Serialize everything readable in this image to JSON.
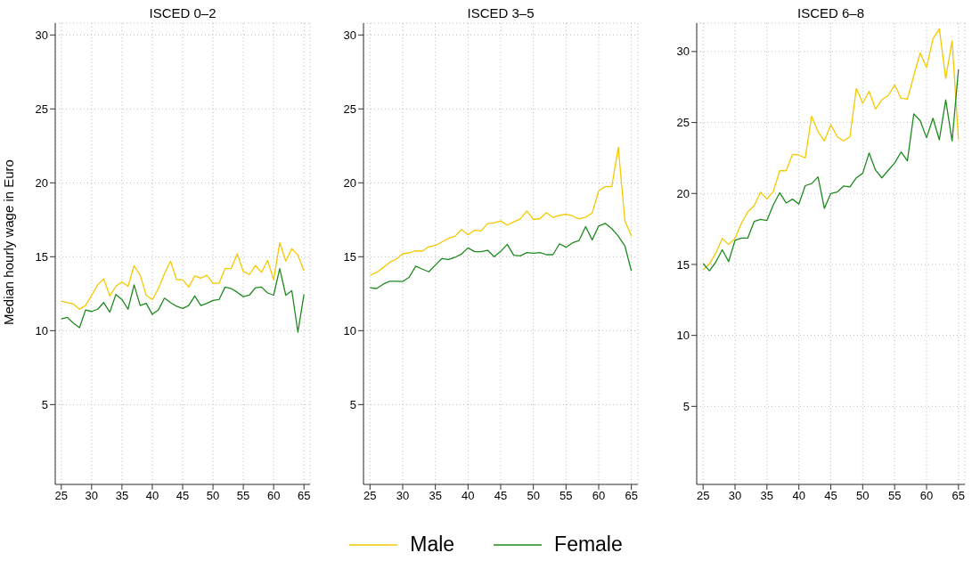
{
  "chart_data": [
    {
      "type": "line",
      "title": "ISCED 0–2",
      "ylabel": "Median hourly wage in Euro",
      "x": [
        25,
        26,
        27,
        28,
        29,
        30,
        31,
        32,
        33,
        34,
        35,
        36,
        37,
        38,
        39,
        40,
        41,
        42,
        43,
        44,
        45,
        46,
        47,
        48,
        49,
        50,
        51,
        52,
        53,
        54,
        55,
        56,
        57,
        58,
        59,
        60,
        61,
        62,
        63,
        64,
        65
      ],
      "xlim": [
        24,
        66
      ],
      "xticks": [
        25,
        30,
        35,
        40,
        45,
        50,
        55,
        60,
        65
      ],
      "ylim": [
        -0.4,
        30.8
      ],
      "yticks": [
        5,
        10,
        15,
        20,
        25,
        30
      ],
      "grid": true,
      "legend": "bottom",
      "series": [
        {
          "name": "Male",
          "color": "#f5c800",
          "values": [
            12.0,
            11.9,
            11.8,
            11.45,
            11.7,
            12.4,
            13.1,
            13.5,
            12.35,
            13.0,
            13.3,
            13.0,
            14.4,
            13.75,
            12.4,
            12.1,
            12.85,
            13.85,
            14.7,
            13.45,
            13.45,
            12.95,
            13.7,
            13.55,
            13.75,
            13.2,
            13.2,
            14.2,
            14.2,
            15.2,
            14.0,
            13.8,
            14.4,
            13.95,
            14.75,
            13.45,
            15.95,
            14.7,
            15.55,
            15.1,
            14.05
          ]
        },
        {
          "name": "Female",
          "color": "#1f8a1f",
          "values": [
            10.8,
            10.9,
            10.5,
            10.2,
            11.4,
            11.3,
            11.45,
            11.9,
            11.25,
            12.45,
            12.1,
            11.45,
            13.1,
            11.7,
            11.85,
            11.1,
            11.4,
            12.2,
            11.9,
            11.65,
            11.5,
            11.7,
            12.35,
            11.7,
            11.85,
            12.05,
            12.1,
            12.95,
            12.85,
            12.6,
            12.3,
            12.4,
            12.9,
            12.95,
            12.55,
            12.4,
            14.2,
            12.4,
            12.7,
            9.9,
            12.45
          ]
        }
      ]
    },
    {
      "type": "line",
      "title": "ISCED 3–5",
      "x": [
        25,
        26,
        27,
        28,
        29,
        30,
        31,
        32,
        33,
        34,
        35,
        36,
        37,
        38,
        39,
        40,
        41,
        42,
        43,
        44,
        45,
        46,
        47,
        48,
        49,
        50,
        51,
        52,
        53,
        54,
        55,
        56,
        57,
        58,
        59,
        60,
        61,
        62,
        63,
        64,
        65
      ],
      "xlim": [
        24,
        66
      ],
      "xticks": [
        25,
        30,
        35,
        40,
        45,
        50,
        55,
        60,
        65
      ],
      "ylim": [
        -0.4,
        30.8
      ],
      "yticks": [
        5,
        10,
        15,
        20,
        25,
        30
      ],
      "grid": true,
      "series": [
        {
          "color": "#f5c800",
          "values": [
            13.74,
            13.94,
            14.26,
            14.62,
            14.84,
            15.2,
            15.26,
            15.4,
            15.38,
            15.68,
            15.76,
            16.0,
            16.24,
            16.38,
            16.84,
            16.5,
            16.8,
            16.74,
            17.24,
            17.3,
            17.42,
            17.14,
            17.36,
            17.56,
            18.1,
            17.52,
            17.58,
            17.98,
            17.66,
            17.8,
            17.88,
            17.76,
            17.56,
            17.68,
            17.96,
            19.46,
            19.74,
            19.74,
            22.4,
            17.44,
            16.4
          ]
        },
        {
          "color": "#1f8a1f",
          "values": [
            12.9,
            12.85,
            13.14,
            13.34,
            13.34,
            13.32,
            13.62,
            14.36,
            14.16,
            13.98,
            14.44,
            14.88,
            14.82,
            14.96,
            15.18,
            15.6,
            15.34,
            15.34,
            15.44,
            15.0,
            15.36,
            15.84,
            15.1,
            15.06,
            15.28,
            15.24,
            15.28,
            15.14,
            15.14,
            15.88,
            15.64,
            15.94,
            16.1,
            17.04,
            16.14,
            17.08,
            17.26,
            16.9,
            16.4,
            15.74,
            14.04
          ]
        }
      ]
    },
    {
      "type": "line",
      "title": "ISCED 6–8",
      "x": [
        25,
        26,
        27,
        28,
        29,
        30,
        31,
        32,
        33,
        34,
        35,
        36,
        37,
        38,
        39,
        40,
        41,
        42,
        43,
        44,
        45,
        46,
        47,
        48,
        49,
        50,
        51,
        52,
        53,
        54,
        55,
        56,
        57,
        58,
        59,
        60,
        61,
        62,
        63,
        64,
        65
      ],
      "xlim": [
        24,
        66
      ],
      "xticks": [
        25,
        30,
        35,
        40,
        45,
        50,
        55,
        60,
        65
      ],
      "ylim": [
        -0.5,
        32
      ],
      "yticks": [
        5,
        10,
        15,
        20,
        25,
        30
      ],
      "grid": true,
      "series": [
        {
          "color": "#f5c800",
          "values": [
            14.62,
            15.04,
            15.8,
            16.83,
            16.4,
            16.83,
            17.9,
            18.7,
            19.14,
            20.1,
            19.6,
            20.15,
            21.6,
            21.6,
            22.75,
            22.7,
            22.5,
            25.45,
            24.35,
            23.7,
            24.85,
            24.0,
            23.7,
            24.0,
            27.4,
            26.35,
            27.2,
            25.95,
            26.6,
            26.9,
            27.65,
            26.7,
            26.65,
            28.3,
            29.9,
            28.87,
            30.9,
            31.6,
            28.1,
            30.75,
            23.8
          ]
        },
        {
          "color": "#1f8a1f",
          "values": [
            15.06,
            14.55,
            15.17,
            16.03,
            15.2,
            16.7,
            16.86,
            16.86,
            18.03,
            18.17,
            18.1,
            19.2,
            20.05,
            19.33,
            19.6,
            19.25,
            20.55,
            20.7,
            21.17,
            18.95,
            20.0,
            20.1,
            20.52,
            20.46,
            21.1,
            21.42,
            22.85,
            21.65,
            21.1,
            21.63,
            22.14,
            22.92,
            22.3,
            25.6,
            25.13,
            23.93,
            25.3,
            23.78,
            26.6,
            23.7,
            28.75
          ]
        }
      ]
    }
  ]
}
